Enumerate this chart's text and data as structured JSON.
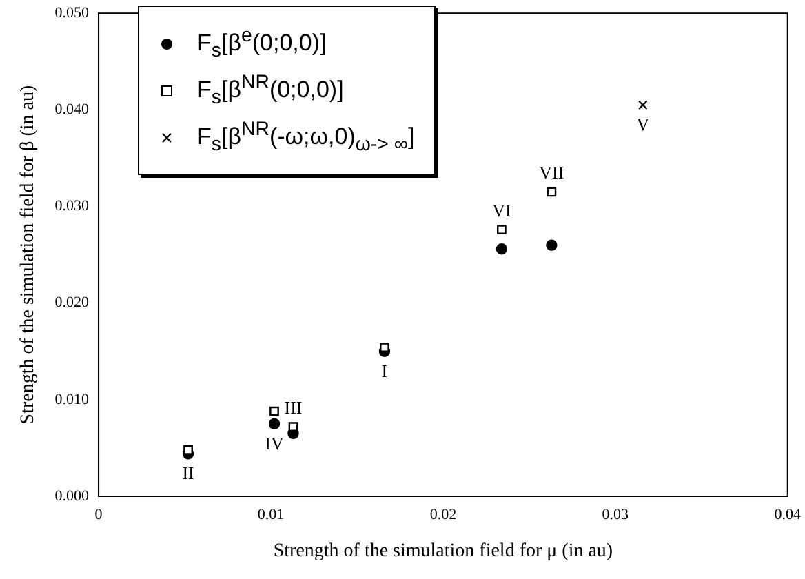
{
  "chart_data": {
    "type": "scatter",
    "xlabel": "Strength of the simulation field for μ (in au)",
    "ylabel": "Strength of the simulation field for β (in au)",
    "xlim": [
      0,
      0.04
    ],
    "xticks": [
      0,
      0.01,
      0.02,
      0.03,
      0.04
    ],
    "ylim": [
      0,
      0.05
    ],
    "yticks": [
      {
        "value": 0,
        "label": "0.000"
      },
      {
        "value": 0.01,
        "label": "0.010"
      },
      {
        "value": 0.02,
        "label": "0.020"
      },
      {
        "value": 0.03,
        "label": "0.030"
      },
      {
        "value": 0.04,
        "label": "0.040"
      },
      {
        "value": 0.05,
        "label": "0.050"
      }
    ],
    "grid": false,
    "legend": "top left",
    "series": [
      {
        "name": "F$_{s}$[β$^{e}$(0;0,0)]",
        "color": "#000000",
        "marker": "circle",
        "x": [
          0.0052,
          0.0102,
          0.0113,
          0.0166,
          0.0234,
          0.0263
        ],
        "values": [
          0.0044,
          0.0075,
          0.0065,
          0.015,
          0.0256,
          0.026
        ]
      },
      {
        "name": "F$_{s}$[β$^{NR}$(0;0,0)]",
        "color": "#000000",
        "marker": "square",
        "x": [
          0.0052,
          0.0102,
          0.0113,
          0.0166,
          0.0234,
          0.0263
        ],
        "values": [
          0.0048,
          0.0088,
          0.0072,
          0.0154,
          0.0276,
          0.0315
        ]
      },
      {
        "name": "F$_{s}$[β$^{NR}$(-ω;ω,0)$_{ω-> ∞}$]",
        "color": "#000000",
        "marker": "cross",
        "x": [
          0.0316
        ],
        "values": [
          0.0405
        ]
      }
    ],
    "annotations": [
      {
        "text": "II",
        "x": 0.0052,
        "y": 0.0044
      },
      {
        "text": "IV",
        "x": 0.0102,
        "y": 0.0075
      },
      {
        "text": "III",
        "x": 0.0113,
        "y": 0.0072
      },
      {
        "text": "I",
        "x": 0.0166,
        "y": 0.015
      },
      {
        "text": "VI",
        "x": 0.0234,
        "y": 0.0276
      },
      {
        "text": "VII",
        "x": 0.0263,
        "y": 0.0315
      },
      {
        "text": "V",
        "x": 0.0316,
        "y": 0.0405
      }
    ]
  }
}
